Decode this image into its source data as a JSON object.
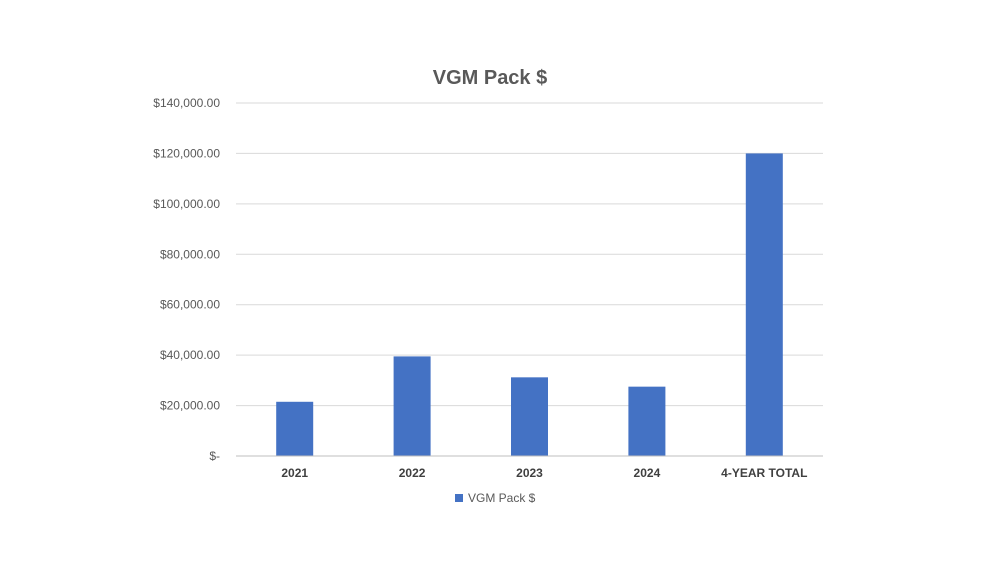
{
  "chart_data": {
    "type": "bar",
    "title": "VGM Pack $",
    "categories": [
      "2021",
      "2022",
      "2023",
      "2024",
      "4-YEAR TOTAL"
    ],
    "series": [
      {
        "name": "VGM Pack $",
        "values": [
          21500,
          39500,
          31200,
          27500,
          120000
        ]
      }
    ],
    "ylim": [
      0,
      140000
    ],
    "yticks": [
      0,
      20000,
      40000,
      60000,
      80000,
      100000,
      120000,
      140000
    ],
    "ytick_labels": [
      "$-",
      "$20,000.00",
      "$40,000.00",
      "$60,000.00",
      "$80,000.00",
      "$100,000.00",
      "$120,000.00",
      "$140,000.00"
    ],
    "xlabel": "",
    "ylabel": "",
    "grid": true,
    "legend": "bottom",
    "color": "#4472c4"
  }
}
